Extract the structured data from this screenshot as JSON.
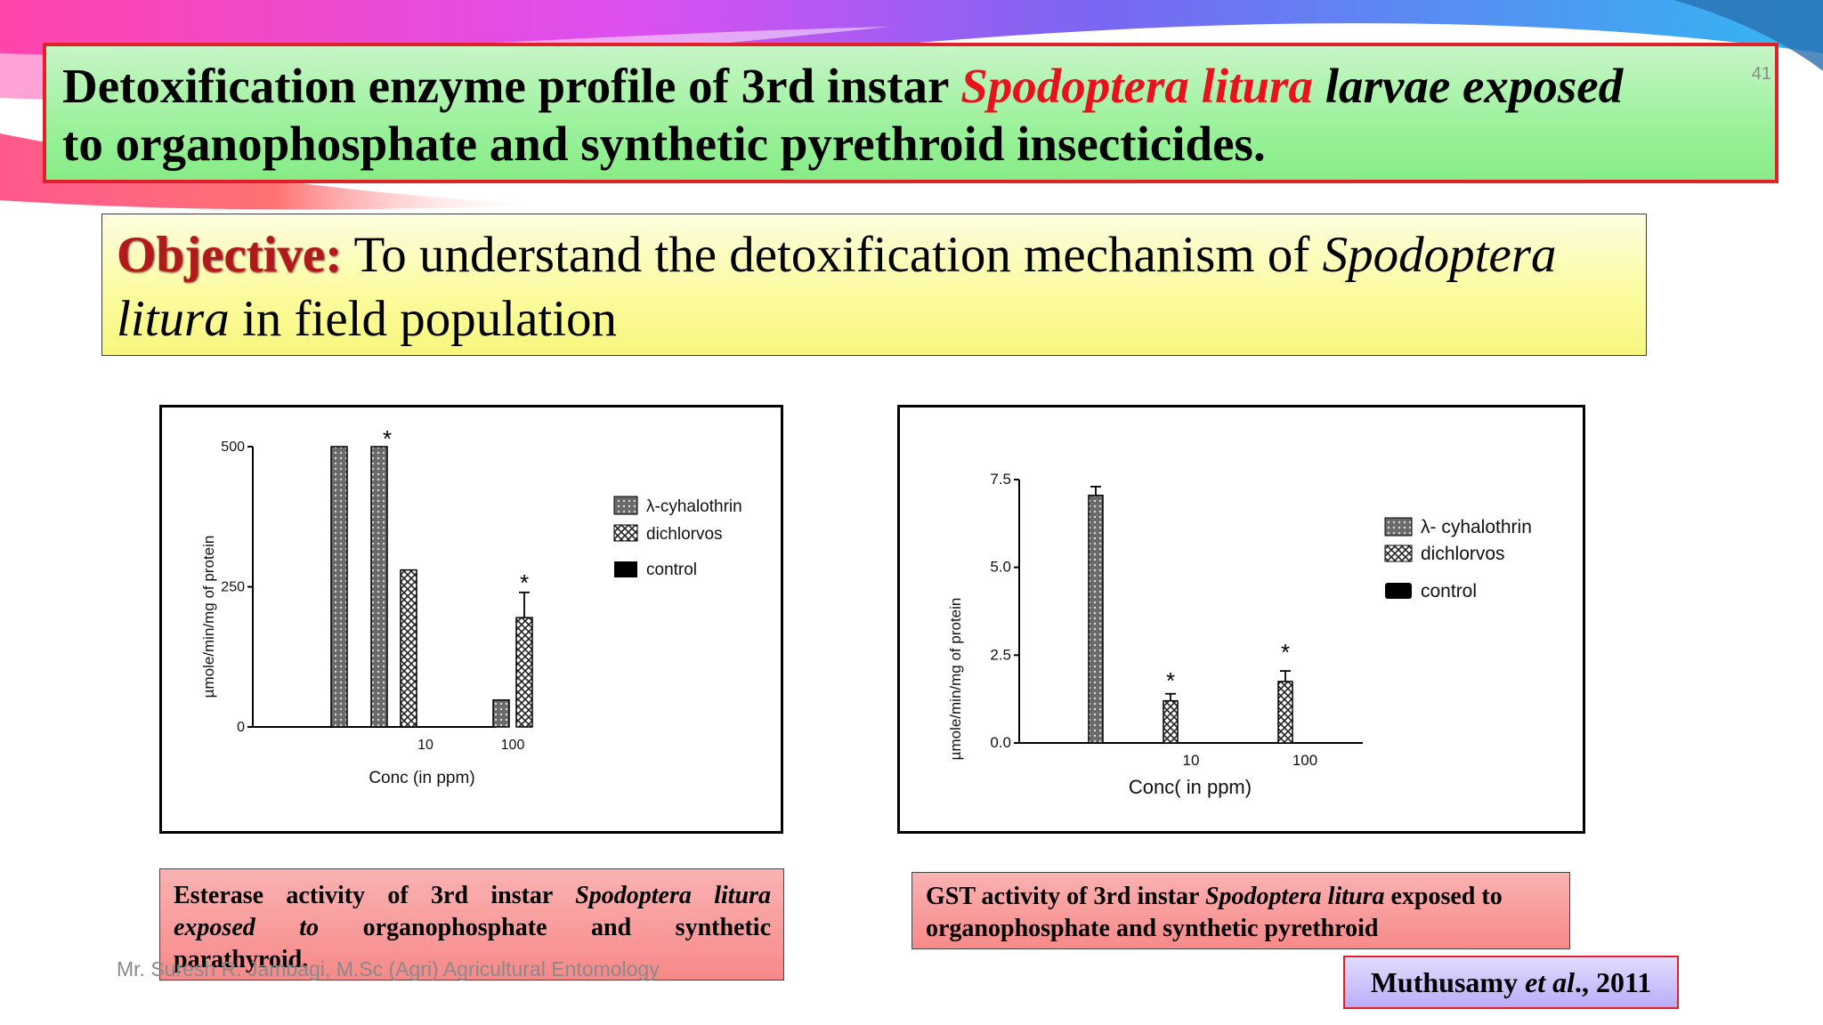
{
  "slide": {
    "title_part1": "Detoxification enzyme profile of 3rd instar ",
    "title_species": "Spodoptera litura",
    "title_part2": " larvae exposed",
    "title_line2": "to organophosphate and synthetic pyrethroid insecticides.",
    "slide_number": "41",
    "objective_label": "Objective:",
    "objective_text1": " To understand the detoxification mechanism of ",
    "objective_species1": "Spodoptera",
    "objective_species2": "litura",
    "objective_text2": " in field population",
    "footer": "Mr. Suresh R. Jambagi, M.Sc (Agri) Agricultural Entomology",
    "citation_name": "Muthusamy ",
    "citation_etal": "et al",
    "citation_year": "., 2011",
    "caption_left_1": "Esterase activity of 3rd instar ",
    "caption_left_species": "Spodoptera litura",
    "caption_left_exposed": "exposed to",
    "caption_left_2": " organophosphate and synthetic",
    "caption_left_3": "parathyroid.",
    "caption_right_1": "GST activity of 3rd instar ",
    "caption_right_species": "Spodoptera litura",
    "caption_right_2": " exposed to",
    "caption_right_3": "organophosphate and  synthetic pyrethroid",
    "colors": {
      "title_border": "#e0202a",
      "species_red": "#e8121c",
      "objective_label": "#b11a1a"
    }
  },
  "chart_data": [
    {
      "type": "bar",
      "title": "",
      "xlabel": "Conc (in ppm)",
      "ylabel": "µmole/min/mg of protein",
      "ylim": [
        0,
        500
      ],
      "yticks": [
        "0",
        "250",
        "500"
      ],
      "categories": [
        "",
        "10",
        "100"
      ],
      "series": [
        {
          "name": "λ-cyhalothrin",
          "values": [
            500,
            500,
            48
          ]
        },
        {
          "name": "dichlorvos",
          "values": [
            null,
            280,
            195
          ]
        },
        {
          "name": "control",
          "values": [
            null,
            null,
            null
          ]
        }
      ],
      "error": [
        null,
        null,
        45
      ],
      "significance": [
        "*",
        "*"
      ],
      "legend": "right"
    },
    {
      "type": "bar",
      "title": "",
      "xlabel": "Conc( in ppm)",
      "ylabel": "µmole/min/mg of protein",
      "ylim": [
        0,
        7.5
      ],
      "yticks": [
        "0.0",
        "2.5",
        "5.0",
        "7.5"
      ],
      "categories": [
        "",
        "10",
        "100"
      ],
      "series": [
        {
          "name": "λ- cyhalothrin",
          "values": [
            7.05,
            null,
            null
          ]
        },
        {
          "name": "dichlorvos",
          "values": [
            null,
            1.2,
            1.75
          ]
        },
        {
          "name": "control",
          "values": [
            null,
            null,
            null
          ]
        }
      ],
      "error": [
        0.25,
        0.2,
        0.3
      ],
      "significance": [
        "*",
        "*"
      ],
      "legend": "right"
    }
  ]
}
